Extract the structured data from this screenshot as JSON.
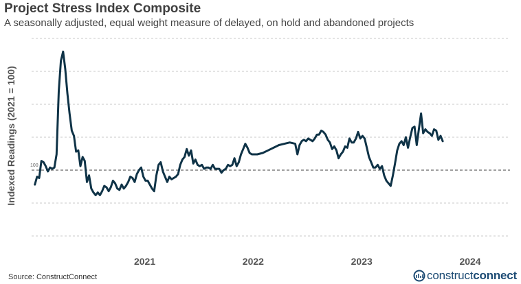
{
  "chart_data": {
    "type": "line",
    "title": "Project Stress Index Composite",
    "subtitle": "A seasonally adjusted, equal weight measure of delayed, on hold and abandoned projects",
    "ylabel": "Indexed Readings (2021 = 100)",
    "xlabel": "",
    "baseline_label": "100",
    "baseline_value": 100,
    "ylim": [
      50,
      200
    ],
    "y_gridlines": [
      50,
      75,
      100,
      125,
      150,
      175,
      200
    ],
    "x_tick_labels": [
      {
        "label": "2021",
        "x": 2021.0
      },
      {
        "label": "2022",
        "x": 2022.0
      },
      {
        "label": "2023",
        "x": 2023.0
      },
      {
        "label": "2024",
        "x": 2024.0
      }
    ],
    "xlim": [
      2019.97,
      2024.38
    ],
    "line_color": "#0f3347",
    "grid": "horizontal dashed",
    "series": [
      {
        "values": [
          [
            2020.0,
            89
          ],
          [
            2020.02,
            95
          ],
          [
            2020.04,
            94
          ],
          [
            2020.06,
            107
          ],
          [
            2020.08,
            106
          ],
          [
            2020.1,
            103
          ],
          [
            2020.12,
            99
          ],
          [
            2020.14,
            102
          ],
          [
            2020.16,
            101
          ],
          [
            2020.18,
            102
          ],
          [
            2020.2,
            112
          ],
          [
            2020.22,
            160
          ],
          [
            2020.24,
            183
          ],
          [
            2020.26,
            190
          ],
          [
            2020.28,
            177
          ],
          [
            2020.3,
            158
          ],
          [
            2020.32,
            143
          ],
          [
            2020.34,
            130
          ],
          [
            2020.36,
            126
          ],
          [
            2020.38,
            114
          ],
          [
            2020.4,
            115
          ],
          [
            2020.42,
            103
          ],
          [
            2020.44,
            110
          ],
          [
            2020.46,
            107
          ],
          [
            2020.48,
            91
          ],
          [
            2020.5,
            96
          ],
          [
            2020.52,
            86
          ],
          [
            2020.54,
            83
          ],
          [
            2020.56,
            81
          ],
          [
            2020.58,
            83
          ],
          [
            2020.6,
            81
          ],
          [
            2020.62,
            84
          ],
          [
            2020.64,
            88
          ],
          [
            2020.66,
            87
          ],
          [
            2020.68,
            84
          ],
          [
            2020.7,
            87
          ],
          [
            2020.72,
            92
          ],
          [
            2020.74,
            90
          ],
          [
            2020.76,
            86
          ],
          [
            2020.78,
            85
          ],
          [
            2020.8,
            89
          ],
          [
            2020.82,
            86
          ],
          [
            2020.84,
            88
          ],
          [
            2020.86,
            91
          ],
          [
            2020.88,
            95
          ],
          [
            2020.9,
            94
          ],
          [
            2020.92,
            91
          ],
          [
            2020.94,
            97
          ],
          [
            2020.96,
            100
          ],
          [
            2020.98,
            102
          ],
          [
            2021.0,
            95
          ],
          [
            2021.02,
            92
          ],
          [
            2021.04,
            92
          ],
          [
            2021.06,
            89
          ],
          [
            2021.08,
            86
          ],
          [
            2021.1,
            84
          ],
          [
            2021.12,
            96
          ],
          [
            2021.14,
            104
          ],
          [
            2021.16,
            106
          ],
          [
            2021.18,
            99
          ],
          [
            2021.2,
            95
          ],
          [
            2021.22,
            91
          ],
          [
            2021.24,
            95
          ],
          [
            2021.26,
            93
          ],
          [
            2021.28,
            94
          ],
          [
            2021.3,
            95
          ],
          [
            2021.32,
            97
          ],
          [
            2021.34,
            104
          ],
          [
            2021.36,
            108
          ],
          [
            2021.38,
            110
          ],
          [
            2021.4,
            116
          ],
          [
            2021.42,
            111
          ],
          [
            2021.44,
            115
          ],
          [
            2021.46,
            105
          ],
          [
            2021.48,
            108
          ],
          [
            2021.5,
            104
          ],
          [
            2021.52,
            103
          ],
          [
            2021.54,
            104
          ],
          [
            2021.56,
            101
          ],
          [
            2021.58,
            102
          ],
          [
            2021.6,
            102
          ],
          [
            2021.62,
            101
          ],
          [
            2021.64,
            104
          ],
          [
            2021.66,
            101
          ],
          [
            2021.68,
            101
          ],
          [
            2021.7,
            101
          ],
          [
            2021.72,
            98
          ],
          [
            2021.74,
            100
          ],
          [
            2021.76,
            101
          ],
          [
            2021.78,
            104
          ],
          [
            2021.8,
            103
          ],
          [
            2021.82,
            104
          ],
          [
            2021.84,
            109
          ],
          [
            2021.86,
            103
          ],
          [
            2021.88,
            106
          ],
          [
            2021.9,
            112
          ],
          [
            2021.92,
            116
          ],
          [
            2021.94,
            120
          ],
          [
            2021.96,
            117
          ],
          [
            2021.98,
            113
          ],
          [
            2022.0,
            112
          ],
          [
            2022.05,
            112
          ],
          [
            2022.1,
            113
          ],
          [
            2022.15,
            115
          ],
          [
            2022.2,
            117
          ],
          [
            2022.25,
            119
          ],
          [
            2022.3,
            120
          ],
          [
            2022.35,
            121
          ],
          [
            2022.4,
            120
          ],
          [
            2022.42,
            112
          ],
          [
            2022.44,
            119
          ],
          [
            2022.46,
            122
          ],
          [
            2022.48,
            123
          ],
          [
            2022.5,
            122
          ],
          [
            2022.52,
            124
          ],
          [
            2022.54,
            123
          ],
          [
            2022.56,
            122
          ],
          [
            2022.58,
            124
          ],
          [
            2022.6,
            127
          ],
          [
            2022.62,
            127
          ],
          [
            2022.64,
            130
          ],
          [
            2022.66,
            129
          ],
          [
            2022.68,
            127
          ],
          [
            2022.7,
            123
          ],
          [
            2022.72,
            121
          ],
          [
            2022.74,
            116
          ],
          [
            2022.76,
            118
          ],
          [
            2022.78,
            115
          ],
          [
            2022.8,
            109
          ],
          [
            2022.82,
            112
          ],
          [
            2022.84,
            114
          ],
          [
            2022.86,
            118
          ],
          [
            2022.88,
            117
          ],
          [
            2022.9,
            124
          ],
          [
            2022.92,
            121
          ],
          [
            2022.94,
            121
          ],
          [
            2022.96,
            124
          ],
          [
            2022.98,
            129
          ],
          [
            2023.0,
            124
          ],
          [
            2023.02,
            126
          ],
          [
            2023.04,
            124
          ],
          [
            2023.06,
            117
          ],
          [
            2023.08,
            110
          ],
          [
            2023.1,
            106
          ],
          [
            2023.12,
            102
          ],
          [
            2023.14,
            102
          ],
          [
            2023.16,
            104
          ],
          [
            2023.18,
            101
          ],
          [
            2023.2,
            103
          ],
          [
            2023.22,
            96
          ],
          [
            2023.24,
            92
          ],
          [
            2023.26,
            90
          ],
          [
            2023.28,
            88
          ],
          [
            2023.3,
            96
          ],
          [
            2023.32,
            105
          ],
          [
            2023.34,
            115
          ],
          [
            2023.36,
            120
          ],
          [
            2023.38,
            122
          ],
          [
            2023.4,
            119
          ],
          [
            2023.42,
            125
          ],
          [
            2023.44,
            117
          ],
          [
            2023.46,
            125
          ],
          [
            2023.48,
            132
          ],
          [
            2023.5,
            133
          ],
          [
            2023.52,
            119
          ],
          [
            2023.54,
            131
          ],
          [
            2023.56,
            143
          ],
          [
            2023.58,
            128
          ],
          [
            2023.6,
            131
          ],
          [
            2023.62,
            129
          ],
          [
            2023.64,
            128
          ],
          [
            2023.66,
            126
          ],
          [
            2023.68,
            131
          ],
          [
            2023.7,
            130
          ],
          [
            2023.72,
            123
          ],
          [
            2023.74,
            126
          ],
          [
            2023.76,
            122
          ]
        ]
      }
    ]
  },
  "footer": {
    "source": "Source: ConstructConnect",
    "logo_regular": "construct",
    "logo_bold": "connect"
  }
}
